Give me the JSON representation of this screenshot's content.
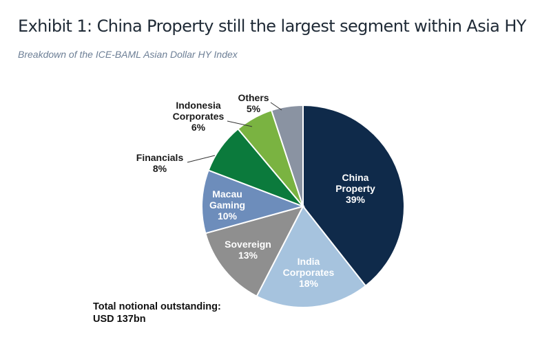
{
  "header": {
    "title": "Exhibit 1: China Property still the largest segment within Asia HY",
    "subtitle": "Breakdown of the ICE-BAML Asian Dollar HY Index"
  },
  "footnote": {
    "line1": "Total notional outstanding:",
    "line2": "USD 137bn"
  },
  "chart_data": {
    "type": "pie",
    "title": "",
    "start_angle_deg": 0,
    "direction": "clockwise",
    "slices": [
      {
        "name": "China Property",
        "value": 39,
        "color": "#0f2a4a",
        "label_lines": [
          "China",
          "Property"
        ],
        "pct_label": "39%",
        "label_color": "#ffffff"
      },
      {
        "name": "India Corporates",
        "value": 18,
        "color": "#a6c3de",
        "label_lines": [
          "India",
          "Corporates"
        ],
        "pct_label": "18%",
        "label_color": "#ffffff"
      },
      {
        "name": "Sovereign",
        "value": 13,
        "color": "#8f8f8f",
        "label_lines": [
          "Sovereign"
        ],
        "pct_label": "13%",
        "label_color": "#ffffff"
      },
      {
        "name": "Macau Gaming",
        "value": 10,
        "color": "#6d8dbb",
        "label_lines": [
          "Macau",
          "Gaming"
        ],
        "pct_label": "10%",
        "label_color": "#ffffff"
      },
      {
        "name": "Financials",
        "value": 8,
        "color": "#0b7a3c",
        "label_lines": [
          "Financials"
        ],
        "pct_label": "8%",
        "label_color": "#1a1a1a"
      },
      {
        "name": "Indonesia Corporates",
        "value": 6,
        "color": "#7ab341",
        "label_lines": [
          "Indonesia",
          "Corporates"
        ],
        "pct_label": "6%",
        "label_color": "#1a1a1a"
      },
      {
        "name": "Others",
        "value": 5,
        "color": "#8a93a2",
        "label_lines": [
          "Others"
        ],
        "pct_label": "5%",
        "label_color": "#1a1a1a"
      }
    ]
  }
}
